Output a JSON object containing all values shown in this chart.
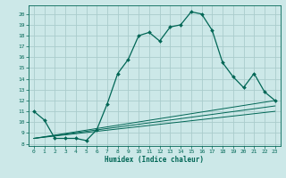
{
  "background_color": "#cce8e8",
  "grid_color": "#aacccc",
  "line_color": "#006655",
  "xlabel": "Humidex (Indice chaleur)",
  "xlim": [
    -0.5,
    23.5
  ],
  "ylim": [
    7.8,
    20.8
  ],
  "yticks": [
    8,
    9,
    10,
    11,
    12,
    13,
    14,
    15,
    16,
    17,
    18,
    19,
    20
  ],
  "xticks": [
    0,
    1,
    2,
    3,
    4,
    5,
    6,
    7,
    8,
    9,
    10,
    11,
    12,
    13,
    14,
    15,
    16,
    17,
    18,
    19,
    20,
    21,
    22,
    23
  ],
  "line1_x": [
    0,
    1,
    2,
    3,
    4,
    5,
    6,
    7,
    8,
    9,
    10,
    11,
    12,
    13,
    14,
    15,
    16,
    17,
    18,
    19,
    20,
    21,
    22,
    23
  ],
  "line1_y": [
    11.0,
    10.2,
    8.5,
    8.5,
    8.5,
    8.3,
    9.3,
    11.7,
    14.5,
    15.8,
    18.0,
    18.3,
    17.5,
    18.8,
    19.0,
    20.2,
    20.0,
    18.5,
    15.5,
    14.2,
    13.2,
    14.5,
    12.8,
    12.0
  ],
  "line2_x": [
    0,
    23
  ],
  "line2_y": [
    8.5,
    12.0
  ],
  "line3_x": [
    0,
    23
  ],
  "line3_y": [
    8.5,
    11.5
  ],
  "line4_x": [
    0,
    23
  ],
  "line4_y": [
    8.5,
    11.0
  ]
}
